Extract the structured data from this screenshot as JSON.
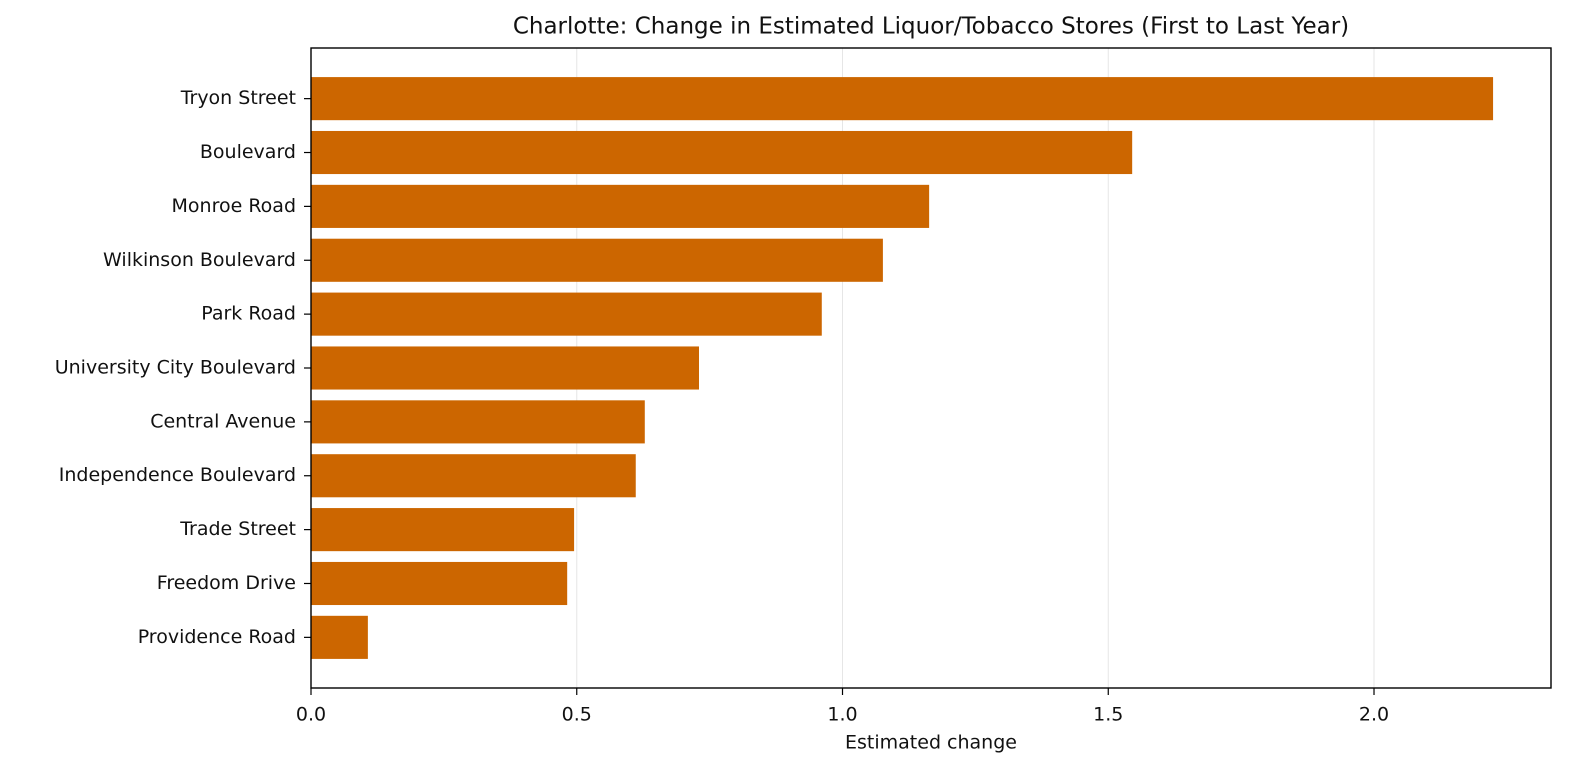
{
  "chart_data": {
    "type": "barh",
    "title": "Charlotte: Change in Estimated Liquor/Tobacco Stores (First to Last Year)",
    "x_label": "Estimated change",
    "categories": [
      "Tryon Street",
      "Boulevard",
      "Monroe Road",
      "Wilkinson Boulevard",
      "Park Road",
      "University City Boulevard",
      "Central Avenue",
      "Independence Boulevard",
      "Trade Street",
      "Freedom Drive",
      "Providence Road"
    ],
    "values": [
      2.224,
      1.545,
      1.163,
      1.076,
      0.961,
      0.73,
      0.628,
      0.611,
      0.495,
      0.482,
      0.107
    ],
    "color": "#cc6600",
    "xlim": [
      0,
      2.333
    ],
    "xticks": [
      {
        "value": 0,
        "label": "0.0"
      },
      0.5,
      {
        "value": 1,
        "label": "1.0"
      },
      1.5,
      {
        "value": 2,
        "label": "2.0"
      }
    ],
    "grid": true
  }
}
